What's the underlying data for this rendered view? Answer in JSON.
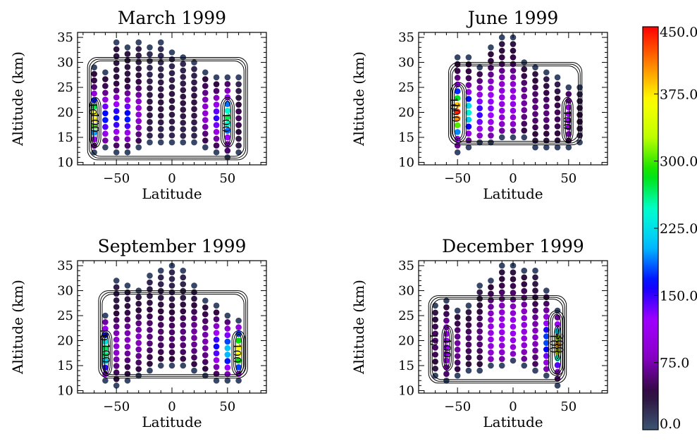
{
  "chart_data": [
    {
      "type": "scatter",
      "title": "March 1999",
      "xlabel": "Latitude",
      "ylabel": "Altitude (km)",
      "xlim": [
        -85,
        85
      ],
      "ylim": [
        9.5,
        36
      ],
      "xticks": [
        "−50",
        "0",
        "50"
      ],
      "yticks": [
        "10",
        "15",
        "20",
        "25",
        "30",
        "35"
      ],
      "columns": [
        {
          "lat": -70,
          "alt_min": 12,
          "alt_max": 29,
          "peak_alt": 19,
          "peak": 380,
          "spread": 3.5,
          "base": 40
        },
        {
          "lat": -60,
          "alt_min": 13,
          "alt_max": 28,
          "peak_alt": 19,
          "peak": 170,
          "spread": 4,
          "base": 35
        },
        {
          "lat": -50,
          "alt_min": 12,
          "alt_max": 34,
          "peak_alt": 19,
          "peak": 165,
          "spread": 4,
          "base": 35
        },
        {
          "lat": -40,
          "alt_min": 12,
          "alt_max": 33,
          "peak_alt": 19,
          "peak": 170,
          "spread": 4,
          "base": 35
        },
        {
          "lat": -30,
          "alt_min": 13,
          "alt_max": 34,
          "peak_alt": 20,
          "peak": 95,
          "spread": 5,
          "base": 30
        },
        {
          "lat": -20,
          "alt_min": 14,
          "alt_max": 33,
          "peak_alt": 21,
          "peak": 35,
          "spread": 6,
          "base": 22
        },
        {
          "lat": -10,
          "alt_min": 14,
          "alt_max": 34,
          "peak_alt": 22,
          "peak": 35,
          "spread": 6,
          "base": 22
        },
        {
          "lat": 0,
          "alt_min": 14,
          "alt_max": 32,
          "peak_alt": 22,
          "peak": 35,
          "spread": 6,
          "base": 22
        },
        {
          "lat": 10,
          "alt_min": 14,
          "alt_max": 31,
          "peak_alt": 22,
          "peak": 35,
          "spread": 6,
          "base": 22
        },
        {
          "lat": 20,
          "alt_min": 14,
          "alt_max": 30,
          "peak_alt": 22,
          "peak": 35,
          "spread": 6,
          "base": 22
        },
        {
          "lat": 30,
          "alt_min": 13,
          "alt_max": 28,
          "peak_alt": 20,
          "peak": 90,
          "spread": 5,
          "base": 30
        },
        {
          "lat": 40,
          "alt_min": 12,
          "alt_max": 27,
          "peak_alt": 19,
          "peak": 150,
          "spread": 4,
          "base": 35
        },
        {
          "lat": 50,
          "alt_min": 11,
          "alt_max": 27,
          "peak_alt": 19,
          "peak": 270,
          "spread": 4,
          "base": 40
        },
        {
          "lat": 60,
          "alt_min": 12,
          "alt_max": 27,
          "peak_alt": 19,
          "peak": 50,
          "spread": 4,
          "base": 25
        }
      ],
      "contours": [
        {
          "label": "10",
          "lat_min": -76,
          "lat_max": 68,
          "alt_min": 10.5,
          "alt_max": 31
        },
        {
          "label": "100",
          "lat_min": -74,
          "lat_max": -64,
          "alt_min": 13,
          "alt_max": 23
        },
        {
          "label": "100",
          "lat_min": 44,
          "lat_max": 56,
          "alt_min": 13,
          "alt_max": 23
        }
      ]
    },
    {
      "type": "scatter",
      "title": "June 1999",
      "xlabel": "Latitude",
      "ylabel": "Altitude (km)",
      "xlim": [
        -85,
        85
      ],
      "ylim": [
        9.5,
        36
      ],
      "xticks": [
        "−50",
        "0",
        "50"
      ],
      "yticks": [
        "10",
        "15",
        "20",
        "25",
        "30",
        "35"
      ],
      "columns": [
        {
          "lat": -50,
          "alt_min": 12,
          "alt_max": 31,
          "peak_alt": 20,
          "peak": 440,
          "spread": 4,
          "base": 40
        },
        {
          "lat": -40,
          "alt_min": 13,
          "alt_max": 31,
          "peak_alt": 20,
          "peak": 240,
          "spread": 4,
          "base": 40
        },
        {
          "lat": -30,
          "alt_min": 14,
          "alt_max": 29,
          "peak_alt": 20,
          "peak": 150,
          "spread": 5,
          "base": 35
        },
        {
          "lat": -20,
          "alt_min": 14,
          "alt_max": 33,
          "peak_alt": 21,
          "peak": 130,
          "spread": 6,
          "base": 35
        },
        {
          "lat": -10,
          "alt_min": 15,
          "alt_max": 35,
          "peak_alt": 22,
          "peak": 105,
          "spread": 7,
          "base": 30
        },
        {
          "lat": 0,
          "alt_min": 15,
          "alt_max": 35,
          "peak_alt": 22,
          "peak": 105,
          "spread": 7,
          "base": 30
        },
        {
          "lat": 10,
          "alt_min": 15,
          "alt_max": 30,
          "peak_alt": 22,
          "peak": 70,
          "spread": 6,
          "base": 25
        },
        {
          "lat": 20,
          "alt_min": 13,
          "alt_max": 29,
          "peak_alt": 21,
          "peak": 60,
          "spread": 6,
          "base": 25
        },
        {
          "lat": 30,
          "alt_min": 13,
          "alt_max": 28,
          "peak_alt": 20,
          "peak": 60,
          "spread": 5,
          "base": 25
        },
        {
          "lat": 40,
          "alt_min": 13,
          "alt_max": 27,
          "peak_alt": 19,
          "peak": 50,
          "spread": 5,
          "base": 25
        },
        {
          "lat": 50,
          "alt_min": 13,
          "alt_max": 25,
          "peak_alt": 19,
          "peak": 115,
          "spread": 4,
          "base": 30
        },
        {
          "lat": 60,
          "alt_min": 14,
          "alt_max": 25,
          "peak_alt": 19,
          "peak": 40,
          "spread": 4,
          "base": 20
        }
      ],
      "contours": [
        {
          "label": "10",
          "lat_min": -58,
          "lat_max": 62,
          "alt_min": 13.5,
          "alt_max": 30
        },
        {
          "label": "100",
          "lat_min": -56,
          "lat_max": -42,
          "alt_min": 14,
          "alt_max": 26
        },
        {
          "label": "100",
          "lat_min": 44,
          "lat_max": 54,
          "alt_min": 14,
          "alt_max": 23
        }
      ]
    },
    {
      "type": "scatter",
      "title": "September 1999",
      "xlabel": "Latitude",
      "ylabel": "Altitude (km)",
      "xlim": [
        -85,
        85
      ],
      "ylim": [
        9.5,
        36
      ],
      "xticks": [
        "−50",
        "0",
        "50"
      ],
      "yticks": [
        "10",
        "15",
        "20",
        "25",
        "30",
        "35"
      ],
      "columns": [
        {
          "lat": -60,
          "alt_min": 12,
          "alt_max": 25,
          "peak_alt": 18,
          "peak": 270,
          "spread": 4,
          "base": 40
        },
        {
          "lat": -50,
          "alt_min": 11,
          "alt_max": 32,
          "peak_alt": 19,
          "peak": 90,
          "spread": 5,
          "base": 30
        },
        {
          "lat": -40,
          "alt_min": 12,
          "alt_max": 31,
          "peak_alt": 20,
          "peak": 80,
          "spread": 5,
          "base": 30
        },
        {
          "lat": -30,
          "alt_min": 13,
          "alt_max": 30,
          "peak_alt": 20,
          "peak": 80,
          "spread": 5,
          "base": 30
        },
        {
          "lat": -20,
          "alt_min": 14,
          "alt_max": 33,
          "peak_alt": 21,
          "peak": 60,
          "spread": 6,
          "base": 25
        },
        {
          "lat": -10,
          "alt_min": 15,
          "alt_max": 34,
          "peak_alt": 21,
          "peak": 55,
          "spread": 6,
          "base": 25
        },
        {
          "lat": 0,
          "alt_min": 15,
          "alt_max": 35,
          "peak_alt": 21,
          "peak": 55,
          "spread": 6,
          "base": 25
        },
        {
          "lat": 10,
          "alt_min": 15,
          "alt_max": 34,
          "peak_alt": 21,
          "peak": 60,
          "spread": 6,
          "base": 25
        },
        {
          "lat": 20,
          "alt_min": 14,
          "alt_max": 31,
          "peak_alt": 21,
          "peak": 70,
          "spread": 6,
          "base": 25
        },
        {
          "lat": 30,
          "alt_min": 13,
          "alt_max": 28,
          "peak_alt": 20,
          "peak": 75,
          "spread": 5,
          "base": 30
        },
        {
          "lat": 40,
          "alt_min": 12,
          "alt_max": 27,
          "peak_alt": 19,
          "peak": 160,
          "spread": 4,
          "base": 35
        },
        {
          "lat": 50,
          "alt_min": 12,
          "alt_max": 25,
          "peak_alt": 18,
          "peak": 210,
          "spread": 4,
          "base": 35
        },
        {
          "lat": 60,
          "alt_min": 12,
          "alt_max": 24,
          "peak_alt": 18,
          "peak": 380,
          "spread": 3.5,
          "base": 40
        }
      ],
      "contours": [
        {
          "label": "10",
          "lat_min": -66,
          "lat_max": 68,
          "alt_min": 12.5,
          "alt_max": 30
        },
        {
          "label": "100",
          "lat_min": -64,
          "lat_max": -54,
          "alt_min": 13,
          "alt_max": 22
        },
        {
          "label": "100",
          "lat_min": 54,
          "lat_max": 66,
          "alt_min": 13,
          "alt_max": 22
        }
      ]
    },
    {
      "type": "scatter",
      "title": "December 1999",
      "xlabel": "Latitude",
      "ylabel": "Altitude (km)",
      "xlim": [
        -85,
        85
      ],
      "ylim": [
        9.5,
        36
      ],
      "xticks": [
        "−50",
        "0",
        "50"
      ],
      "yticks": [
        "10",
        "15",
        "20",
        "25",
        "30",
        "35"
      ],
      "columns": [
        {
          "lat": -70,
          "alt_min": 13,
          "alt_max": 27,
          "peak_alt": 20,
          "peak": 55,
          "spread": 5,
          "base": 25
        },
        {
          "lat": -60,
          "alt_min": 12,
          "alt_max": 28,
          "peak_alt": 19,
          "peak": 120,
          "spread": 5,
          "base": 30
        },
        {
          "lat": -50,
          "alt_min": 13,
          "alt_max": 26,
          "peak_alt": 19,
          "peak": 70,
          "spread": 5,
          "base": 25
        },
        {
          "lat": -40,
          "alt_min": 14,
          "alt_max": 27,
          "peak_alt": 20,
          "peak": 55,
          "spread": 5,
          "base": 25
        },
        {
          "lat": -30,
          "alt_min": 14,
          "alt_max": 31,
          "peak_alt": 21,
          "peak": 60,
          "spread": 6,
          "base": 25
        },
        {
          "lat": -20,
          "alt_min": 15,
          "alt_max": 32,
          "peak_alt": 21,
          "peak": 105,
          "spread": 7,
          "base": 30
        },
        {
          "lat": -10,
          "alt_min": 15,
          "alt_max": 35,
          "peak_alt": 22,
          "peak": 110,
          "spread": 7,
          "base": 30
        },
        {
          "lat": 0,
          "alt_min": 16,
          "alt_max": 35,
          "peak_alt": 22,
          "peak": 110,
          "spread": 7,
          "base": 30
        },
        {
          "lat": 10,
          "alt_min": 15,
          "alt_max": 34,
          "peak_alt": 22,
          "peak": 100,
          "spread": 7,
          "base": 30
        },
        {
          "lat": 20,
          "alt_min": 14,
          "alt_max": 34,
          "peak_alt": 21,
          "peak": 80,
          "spread": 6,
          "base": 30
        },
        {
          "lat": 30,
          "alt_min": 13,
          "alt_max": 30,
          "peak_alt": 20,
          "peak": 180,
          "spread": 5,
          "base": 35
        },
        {
          "lat": 40,
          "alt_min": 11,
          "alt_max": 26,
          "peak_alt": 19,
          "peak": 390,
          "spread": 3.5,
          "base": 40
        }
      ],
      "contours": [
        {
          "label": "10",
          "lat_min": -76,
          "lat_max": 48,
          "alt_min": 11.5,
          "alt_max": 29
        },
        {
          "label": "100",
          "lat_min": -64,
          "lat_max": -54,
          "alt_min": 14,
          "alt_max": 23
        },
        {
          "label": "100",
          "lat_min": 32,
          "lat_max": 46,
          "alt_min": 13,
          "alt_max": 26
        },
        {
          "label": "300",
          "lat_min": 37,
          "lat_max": 43,
          "alt_min": 16,
          "alt_max": 23
        }
      ]
    }
  ],
  "colorbar": {
    "min": 0,
    "max": 450,
    "ticks": [
      "0.0",
      "75.0",
      "150.0",
      "225.0",
      "300.0",
      "375.0",
      "450.0"
    ],
    "colors": [
      "#3b5572",
      "#2d0a3a",
      "#8a00c8",
      "#a000ff",
      "#0000ff",
      "#00bfff",
      "#00ffd0",
      "#00e000",
      "#c0ff00",
      "#ffff00",
      "#ff8000",
      "#ff0000"
    ]
  }
}
